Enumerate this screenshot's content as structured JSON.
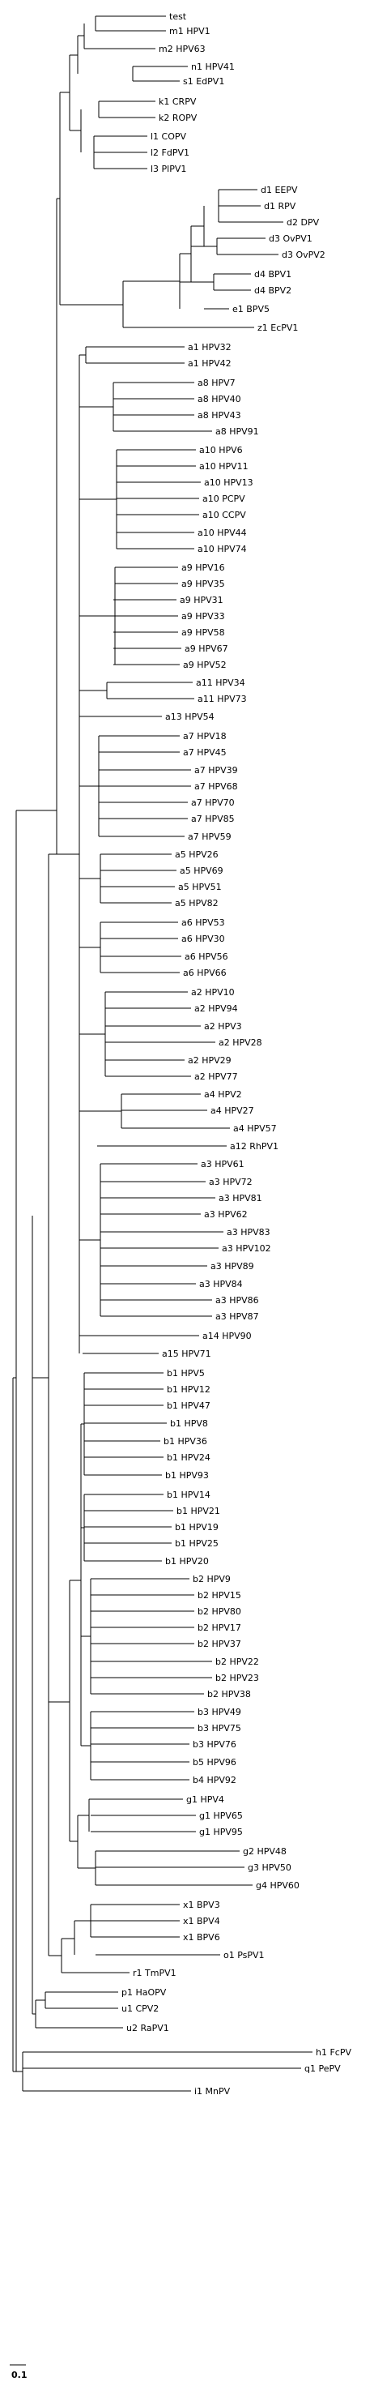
{
  "tree": {
    "scale_label": "0.1",
    "leaves": [
      "test",
      "m1 HPV1",
      "m2 HPV63",
      "n1 HPV41",
      "s1 EdPV1",
      "k1 CRPV",
      "k2 ROPV",
      "l1 COPV",
      "l2 FdPV1",
      "l3 PlPV1",
      "d1 EEPV",
      "d1 RPV",
      "d2 DPV",
      "d3 OvPV1",
      "d3 OvPV2",
      "d4 BPV1",
      "d4 BPV2",
      "e1 BPV5",
      "z1 EcPV1",
      "a1 HPV32",
      "a1 HPV42",
      "a8 HPV7",
      "a8 HPV40",
      "a8 HPV43",
      "a8 HPV91",
      "a10 HPV6",
      "a10 HPV11",
      "a10 HPV13",
      "a10 PCPV",
      "a10 CCPV",
      "a10 HPV44",
      "a10 HPV74",
      "a9 HPV16",
      "a9 HPV35",
      "a9 HPV31",
      "a9 HPV33",
      "a9 HPV58",
      "a9 HPV67",
      "a9 HPV52",
      "a11 HPV34",
      "a11 HPV73",
      "a13 HPV54",
      "a7 HPV18",
      "a7 HPV45",
      "a7 HPV39",
      "a7 HPV68",
      "a7 HPV70",
      "a7 HPV85",
      "a7 HPV59",
      "a5 HPV26",
      "a5 HPV69",
      "a5 HPV51",
      "a5 HPV82",
      "a6 HPV53",
      "a6 HPV30",
      "a6 HPV56",
      "a6 HPV66",
      "a2 HPV10",
      "a2 HPV94",
      "a2 HPV3",
      "a2 HPV28",
      "a2 HPV29",
      "a2 HPV77",
      "a4 HPV2",
      "a4 HPV27",
      "a4 HPV57",
      "a12 RhPV1",
      "a3 HPV61",
      "a3 HPV72",
      "a3 HPV81",
      "a3 HPV62",
      "a3 HPV83",
      "a3 HPV102",
      "a3 HPV89",
      "a3 HPV84",
      "a3 HPV86",
      "a3 HPV87",
      "a14 HPV90",
      "a15 HPV71",
      "b1 HPV5",
      "b1 HPV12",
      "b1 HPV47",
      "b1 HPV8",
      "b1 HPV36",
      "b1 HPV24",
      "b1 HPV93",
      "b1 HPV14",
      "b1 HPV21",
      "b1 HPV19",
      "b1 HPV25",
      "b1 HPV20",
      "b2 HPV9",
      "b2 HPV15",
      "b2 HPV80",
      "b2 HPV17",
      "b2 HPV37",
      "b2 HPV22",
      "b2 HPV23",
      "b2 HPV38",
      "b3 HPV49",
      "b3 HPV75",
      "b3 HPV76",
      "b5 HPV96",
      "b4 HPV92",
      "g1 HPV4",
      "g1 HPV65",
      "g1 HPV95",
      "g2 HPV48",
      "g3 HPV50",
      "g4 HPV60",
      "x1 BPV3",
      "x1 BPV4",
      "x1 BPV6",
      "o1 PsPV1",
      "r1 TmPV1",
      "p1 HaOPV",
      "u1 CPV2",
      "u2 RaPV1",
      "h1 FcPV",
      "q1 PePV",
      "i1 MnPV"
    ]
  }
}
